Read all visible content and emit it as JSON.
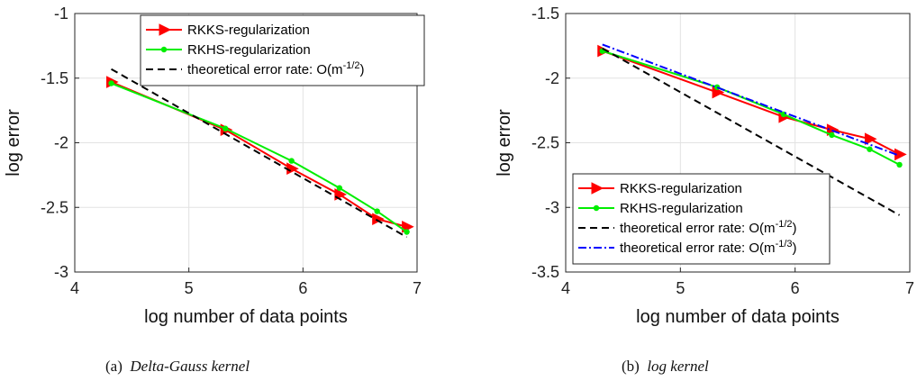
{
  "chart_data": [
    {
      "type": "line",
      "xlabel": "log number of data points",
      "ylabel": "log error",
      "xlim": [
        4,
        7
      ],
      "ylim": [
        -3,
        -1
      ],
      "xticks": [
        "4",
        "5",
        "6",
        "7"
      ],
      "yticks": [
        "-3",
        "-2.5",
        "-2",
        "-1.5",
        "-1"
      ],
      "grid": true,
      "legend_position": "top-right",
      "caption_label": "(a)",
      "caption_text": "Delta-Gauss kernel",
      "series": [
        {
          "name": "RKKS-regularization",
          "color": "#ff0000",
          "marker": "triangle-right",
          "style": "solid",
          "x": [
            4.32,
            5.32,
            5.9,
            6.32,
            6.65,
            6.91
          ],
          "y": [
            -1.53,
            -1.9,
            -2.2,
            -2.4,
            -2.59,
            -2.65
          ]
        },
        {
          "name": "RKHS-regularization",
          "color": "#00ee00",
          "marker": "dot",
          "style": "solid",
          "x": [
            4.32,
            5.32,
            5.9,
            6.32,
            6.65,
            6.91
          ],
          "y": [
            -1.54,
            -1.89,
            -2.14,
            -2.35,
            -2.53,
            -2.69
          ]
        },
        {
          "name": "theoretical error rate: O(m",
          "name_sup": "-1/2",
          "name_end": ")",
          "color": "#000000",
          "marker": "none",
          "style": "dashed",
          "x": [
            4.32,
            6.91
          ],
          "y": [
            -1.43,
            -2.73
          ]
        }
      ]
    },
    {
      "type": "line",
      "xlabel": "log number of data points",
      "ylabel": "log error",
      "xlim": [
        4,
        7
      ],
      "ylim": [
        -3.5,
        -1.5
      ],
      "xticks": [
        "4",
        "5",
        "6",
        "7"
      ],
      "yticks": [
        "-3.5",
        "-3",
        "-2.5",
        "-2",
        "-1.5"
      ],
      "grid": true,
      "legend_position": "bottom-right",
      "caption_label": "(b)",
      "caption_text": "log kernel",
      "series": [
        {
          "name": "RKKS-regularization",
          "color": "#ff0000",
          "marker": "triangle-right",
          "style": "solid",
          "x": [
            4.32,
            5.32,
            5.9,
            6.32,
            6.65,
            6.91
          ],
          "y": [
            -1.79,
            -2.11,
            -2.3,
            -2.4,
            -2.47,
            -2.59
          ]
        },
        {
          "name": "RKHS-regularization",
          "color": "#00ee00",
          "marker": "dot",
          "style": "solid",
          "x": [
            4.32,
            5.32,
            5.9,
            6.32,
            6.65,
            6.91
          ],
          "y": [
            -1.79,
            -2.07,
            -2.28,
            -2.44,
            -2.55,
            -2.67
          ]
        },
        {
          "name": "theoretical error rate: O(m",
          "name_sup": "-1/2",
          "name_end": ")",
          "color": "#000000",
          "marker": "none",
          "style": "dashed",
          "x": [
            4.32,
            6.91
          ],
          "y": [
            -1.77,
            -3.06
          ]
        },
        {
          "name": "theoretical error rate: O(m",
          "name_sup": "-1/3",
          "name_end": ")",
          "color": "#0000ff",
          "marker": "none",
          "style": "dashdot",
          "x": [
            4.32,
            6.91
          ],
          "y": [
            -1.74,
            -2.6
          ]
        }
      ]
    }
  ]
}
